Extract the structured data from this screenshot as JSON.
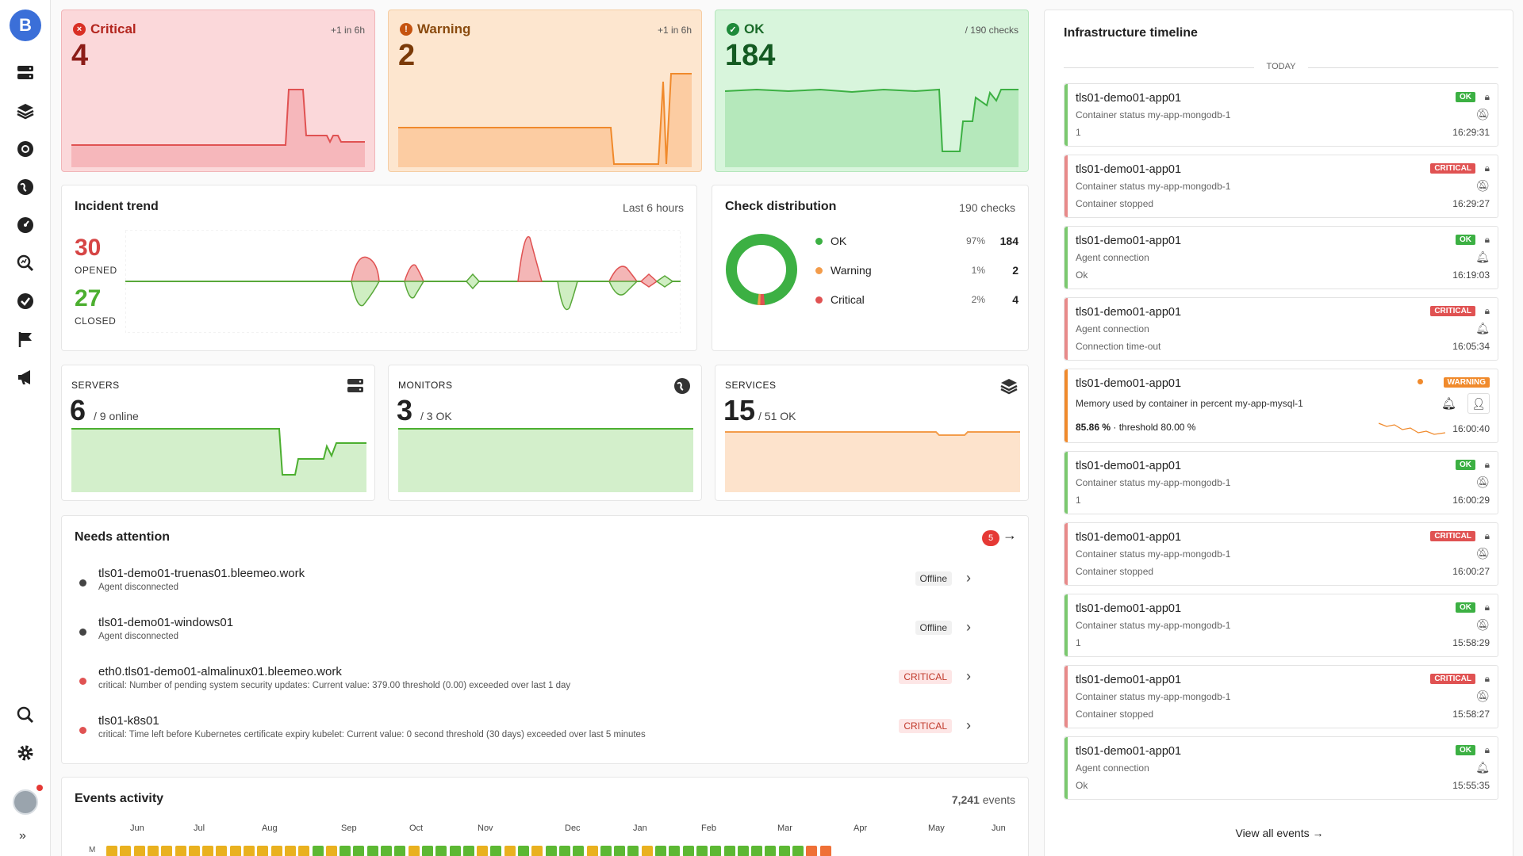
{
  "sidebar": {
    "logo": "B",
    "icons": [
      "servers-icon",
      "layers-icon",
      "kubernetes-icon",
      "globe-icon",
      "dashboard-icon",
      "analytics-icon",
      "check-icon",
      "flag-icon",
      "megaphone-icon"
    ],
    "bottom": [
      "search-icon",
      "gear-icon"
    ],
    "expand": "»"
  },
  "status": {
    "critical": {
      "title": "Critical",
      "value": "4",
      "note": "+1 in 6h"
    },
    "warning": {
      "title": "Warning",
      "value": "2",
      "note": "+1 in 6h"
    },
    "ok": {
      "title": "OK",
      "value": "184",
      "note": "/ 190 checks"
    }
  },
  "incident": {
    "title": "Incident trend",
    "range": "Last 6 hours",
    "opened": "30",
    "opened_label": "OPENED",
    "closed": "27",
    "closed_label": "CLOSED"
  },
  "distribution": {
    "title": "Check distribution",
    "total": "190 checks",
    "rows": [
      {
        "label": "OK",
        "pct": "97%",
        "count": "184",
        "color": "#3cb043"
      },
      {
        "label": "Warning",
        "pct": "1%",
        "count": "2",
        "color": "#f39c4a"
      },
      {
        "label": "Critical",
        "pct": "2%",
        "count": "4",
        "color": "#e05252"
      }
    ]
  },
  "summary": {
    "servers": {
      "label": "SERVERS",
      "value": "6",
      "sub": "/ 9 online"
    },
    "monitors": {
      "label": "MONITORS",
      "value": "3",
      "sub": "/ 3 OK"
    },
    "services": {
      "label": "SERVICES",
      "value": "15",
      "sub": "/ 51 OK"
    }
  },
  "attention": {
    "title": "Needs attention",
    "count": "5",
    "items": [
      {
        "title": "tls01-demo01-truenas01.bleemeo.work",
        "sub": "Agent disconnected",
        "badge": "Offline",
        "dot": "#444",
        "kind": "off"
      },
      {
        "title": "tls01-demo01-windows01",
        "sub": "Agent disconnected",
        "badge": "Offline",
        "dot": "#444",
        "kind": "off"
      },
      {
        "title": "eth0.tls01-demo01-almalinux01.bleemeo.work",
        "sub": "critical: Number of pending system security updates: Current value: 379.00 threshold (0.00) exceeded over last 1 day",
        "badge": "CRITICAL",
        "dot": "#e05252",
        "kind": "crit"
      },
      {
        "title": "tls01-k8s01",
        "sub": "critical: Time left before Kubernetes certificate expiry kubelet: Current value: 0 second threshold (30 days) exceeded over last 5 minutes",
        "badge": "CRITICAL",
        "dot": "#e05252",
        "kind": "crit"
      }
    ]
  },
  "events": {
    "title": "Events activity",
    "count": "7,241",
    "count_suffix": "events",
    "months": [
      "Jun",
      "Jul",
      "Aug",
      "Sep",
      "Oct",
      "Nov",
      "Dec",
      "Jan",
      "Feb",
      "Mar",
      "Apr",
      "May",
      "Jun"
    ],
    "row_label": "M"
  },
  "timeline": {
    "title": "Infrastructure timeline",
    "today": "TODAY",
    "view_all": "View all events",
    "items": [
      {
        "title": "tls01-demo01-app01",
        "l2": "Container status my-app-mongodb-1",
        "l3": "1",
        "badge": "OK",
        "time": "16:29:31",
        "muted": true
      },
      {
        "title": "tls01-demo01-app01",
        "l2": "Container status my-app-mongodb-1",
        "l3": "Container stopped",
        "badge": "CRITICAL",
        "time": "16:29:27",
        "muted": true
      },
      {
        "title": "tls01-demo01-app01",
        "l2": "Agent connection",
        "l3": "Ok",
        "badge": "OK",
        "time": "16:19:03",
        "muted": false
      },
      {
        "title": "tls01-demo01-app01",
        "l2": "Agent connection",
        "l3": "Connection time-out",
        "badge": "CRITICAL",
        "time": "16:05:34",
        "muted": false
      },
      {
        "title": "tls01-demo01-app01",
        "l2": "Memory used by container in percent my-app-mysql-1",
        "l3": "85.86 %",
        "l3b": "· threshold 80.00 %",
        "badge": "WARNING",
        "time": "16:00:40",
        "muted": false
      },
      {
        "title": "tls01-demo01-app01",
        "l2": "Container status my-app-mongodb-1",
        "l3": "1",
        "badge": "OK",
        "time": "16:00:29",
        "muted": true
      },
      {
        "title": "tls01-demo01-app01",
        "l2": "Container status my-app-mongodb-1",
        "l3": "Container stopped",
        "badge": "CRITICAL",
        "time": "16:00:27",
        "muted": true
      },
      {
        "title": "tls01-demo01-app01",
        "l2": "Container status my-app-mongodb-1",
        "l3": "1",
        "badge": "OK",
        "time": "15:58:29",
        "muted": true
      },
      {
        "title": "tls01-demo01-app01",
        "l2": "Container status my-app-mongodb-1",
        "l3": "Container stopped",
        "badge": "CRITICAL",
        "time": "15:58:27",
        "muted": true
      },
      {
        "title": "tls01-demo01-app01",
        "l2": "Agent connection",
        "l3": "Ok",
        "badge": "OK",
        "time": "15:55:35",
        "muted": false
      }
    ]
  }
}
